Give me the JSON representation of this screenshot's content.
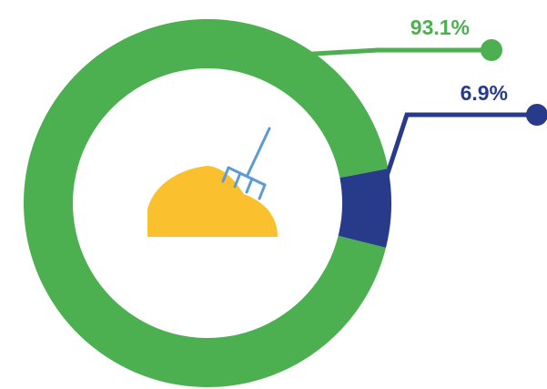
{
  "chart_data": {
    "type": "pie",
    "donut": true,
    "slices": [
      {
        "label": "93.1%",
        "value": 93.1,
        "color": "#4caf50"
      },
      {
        "label": "6.9%",
        "value": 6.9,
        "color": "#283a8a"
      }
    ],
    "center_icon": "hay-pile-with-pitchfork-icon",
    "legend": "none"
  }
}
